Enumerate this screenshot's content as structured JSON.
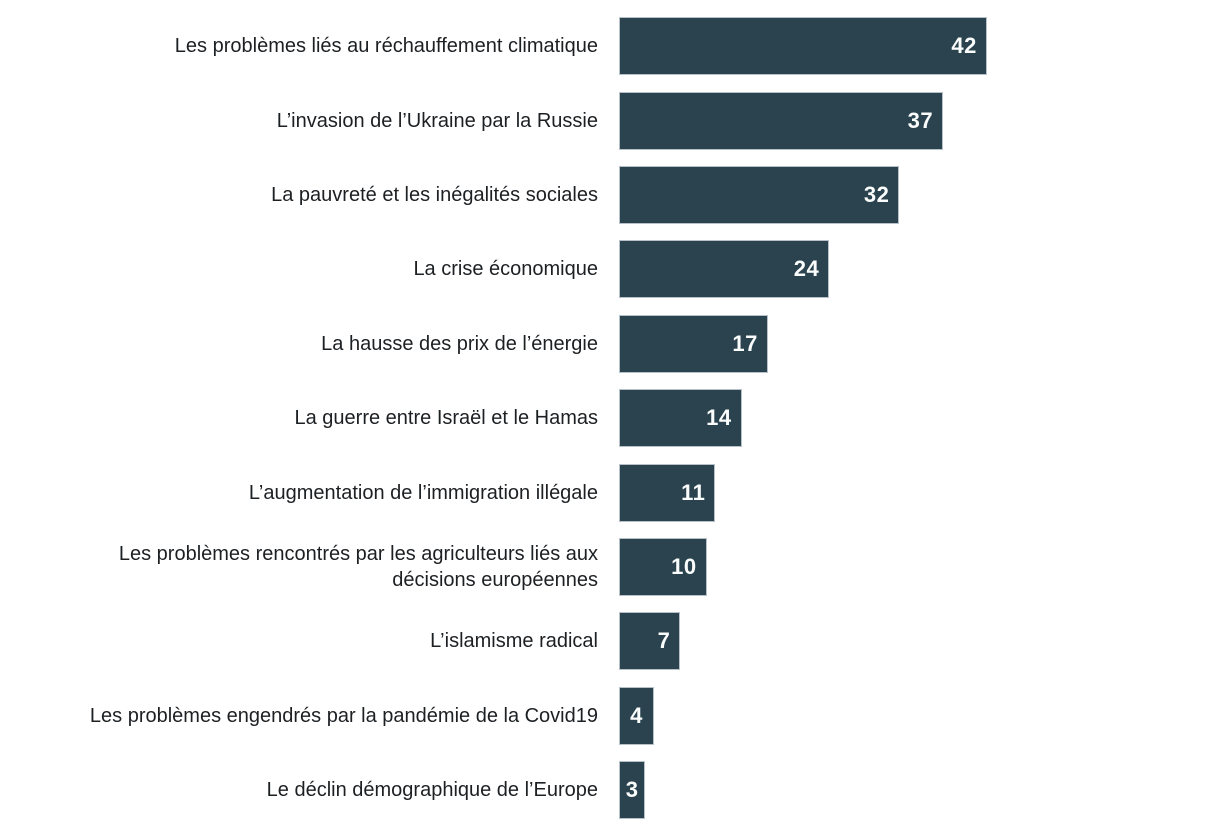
{
  "colors": {
    "bar_fill": "#2a434e",
    "bar_border": "#b6c1c8",
    "label_text": "#1d2023",
    "value_text": "#fbfcfc",
    "background": "#ffffff"
  },
  "chart_data": {
    "type": "bar",
    "orientation": "horizontal",
    "title": "",
    "xlabel": "",
    "ylabel": "",
    "xlim": [
      0,
      42
    ],
    "grid": false,
    "legend": false,
    "value_labels_inside_bars": true,
    "categories": [
      "Les problèmes liés au réchauffement climatique",
      "L’invasion de l’Ukraine par la Russie",
      "La pauvreté et les inégalités sociales",
      "La crise économique",
      "La hausse des prix de l’énergie",
      "La guerre entre Israël et le Hamas",
      "L’augmentation de l’immigration illégale",
      "Les problèmes rencontrés par les agriculteurs liés aux\ndécisions européennes",
      "L’islamisme radical",
      "Les problèmes engendrés par la pandémie de la Covid19",
      "Le déclin démographique de l’Europe"
    ],
    "values": [
      42,
      37,
      32,
      24,
      17,
      14,
      11,
      10,
      7,
      4,
      3
    ]
  }
}
